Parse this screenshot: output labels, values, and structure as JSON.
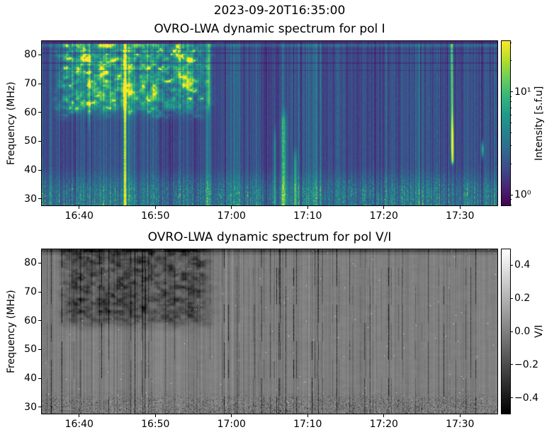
{
  "figure": {
    "suptitle": "2023-09-20T16:35:00",
    "background_color": "#ffffff",
    "text_color": "#000000"
  },
  "chart_data": [
    {
      "type": "heatmap",
      "title": "OVRO-LWA dynamic spectrum for pol I",
      "xlabel": "",
      "ylabel": "Frequency (MHz)",
      "xlim_time": [
        "16:35",
        "17:35"
      ],
      "x_ticks": [
        "16:40",
        "16:50",
        "17:00",
        "17:10",
        "17:20",
        "17:30"
      ],
      "y_ticks": [
        30,
        40,
        50,
        60,
        70,
        80
      ],
      "ylim": [
        27.5,
        85
      ],
      "grid": false,
      "colormap": "viridis",
      "colorbar": {
        "label": "Intensity [s.f.u]",
        "scale": "log",
        "tick_labels": [
          "10¹",
          "10⁰"
        ],
        "tick_values": [
          10,
          1
        ],
        "minor_tick_values": [
          30,
          20,
          9,
          8,
          7,
          6,
          5,
          4,
          3,
          2,
          0.9,
          0.8
        ],
        "vmin": 0.78,
        "vmax": 31.6,
        "position": "right"
      },
      "features": [
        {
          "name": "noise-storm-patches",
          "time_range": [
            "16:37",
            "16:57"
          ],
          "freq_range_mhz": [
            60,
            85
          ],
          "appearance": "clumpy bright green-yellow emission"
        },
        {
          "name": "broadband-burst",
          "time": "16:46",
          "freq_range_mhz": [
            28,
            85
          ],
          "appearance": "bright vertical streak across full band"
        },
        {
          "name": "bright-spots",
          "time": "16:54",
          "freq_range_mhz": [
            68,
            74
          ],
          "appearance": "compact yellow spots"
        },
        {
          "name": "burst-group",
          "time_range": [
            "17:05",
            "17:09"
          ],
          "freq_range_mhz": [
            28,
            62
          ],
          "appearance": "bright green vertical streaks"
        },
        {
          "name": "intense-burst",
          "time": "17:29",
          "freq_range_mhz": [
            42,
            85
          ],
          "appearance": "brightest yellow streak, peak 44-56 MHz"
        },
        {
          "name": "small-burst",
          "time": "17:33",
          "freq_range_mhz": [
            44,
            50
          ],
          "appearance": "short green streak"
        },
        {
          "name": "rfi-dark-band",
          "freq_mhz": 84.5,
          "appearance": "dark horizontal band at top edge"
        },
        {
          "name": "vertical-striping",
          "appearance": "continuous narrow teal vertical bands over dark purple background, denser below 40 MHz"
        }
      ]
    },
    {
      "type": "heatmap",
      "title": "OVRO-LWA dynamic spectrum for pol V/I",
      "xlabel": "",
      "ylabel": "Frequency (MHz)",
      "xlim_time": [
        "16:35",
        "17:35"
      ],
      "x_ticks": [
        "16:40",
        "16:50",
        "17:00",
        "17:10",
        "17:20",
        "17:30"
      ],
      "y_ticks": [
        30,
        40,
        50,
        60,
        70,
        80
      ],
      "ylim": [
        27.5,
        85
      ],
      "grid": false,
      "colormap": "gray",
      "colorbar": {
        "label": "V/I",
        "scale": "linear",
        "tick_labels": [
          "0.4",
          "0.2",
          "0.0",
          "−0.2",
          "−0.4"
        ],
        "tick_values": [
          0.4,
          0.2,
          0.0,
          -0.2,
          -0.4
        ],
        "minor_tick_values": [],
        "vmin": -0.5,
        "vmax": 0.5,
        "position": "right"
      },
      "features": [
        {
          "name": "dark-patches",
          "time_range": [
            "16:38",
            "16:57"
          ],
          "freq_range_mhz": [
            58,
            85
          ],
          "appearance": "dark mottled circular-polarization patches"
        },
        {
          "name": "thin-dark-lines",
          "appearance": "scattered narrow near-black vertical lines through full band"
        },
        {
          "name": "dark-top-band",
          "freq_mhz": 84.5,
          "appearance": "dark horizontal band at top edge"
        },
        {
          "name": "bottom-speckle",
          "freq_range_mhz": [
            28,
            35
          ],
          "appearance": "salt-and-pepper dark noise"
        },
        {
          "name": "background",
          "appearance": "uniform mid-gray, V/I near 0"
        }
      ]
    }
  ]
}
